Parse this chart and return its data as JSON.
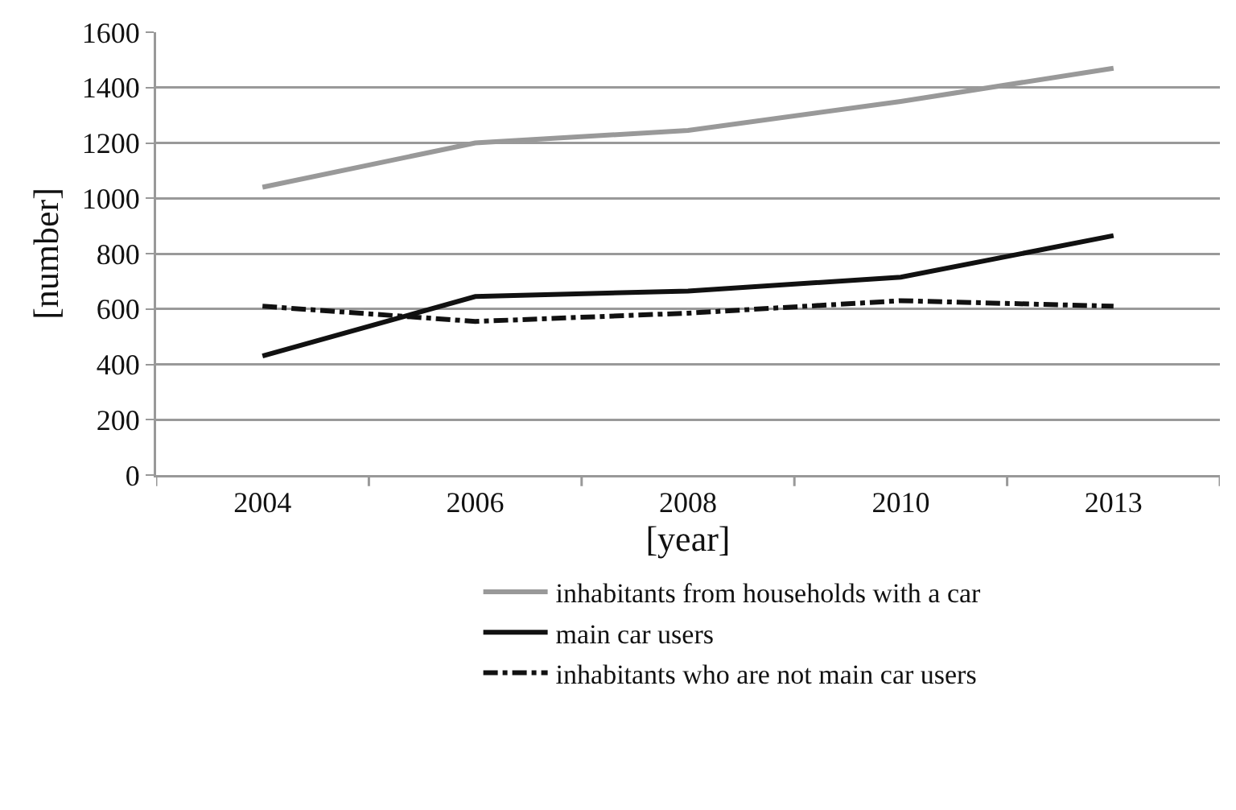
{
  "chart_data": {
    "type": "line",
    "xlabel": "[year]",
    "ylabel": "[number]",
    "categories": [
      "2004",
      "2006",
      "2008",
      "2010",
      "2013"
    ],
    "series": [
      {
        "name": "inhabitants from households with a car",
        "color": "#999999",
        "line_style": "solid",
        "values": [
          1040,
          1200,
          1245,
          1350,
          1470
        ]
      },
      {
        "name": "main car users",
        "color": "#111111",
        "line_style": "solid",
        "values": [
          430,
          645,
          665,
          715,
          865
        ]
      },
      {
        "name": "inhabitants who are not main car users",
        "color": "#111111",
        "line_style": "dashdot",
        "values": [
          610,
          555,
          585,
          630,
          610
        ]
      }
    ],
    "ylim": [
      0,
      1600
    ],
    "yticks": [
      0,
      200,
      400,
      600,
      800,
      1000,
      1200,
      1400,
      1600
    ],
    "grid": "y",
    "legend": "bottom",
    "marker": "none"
  }
}
